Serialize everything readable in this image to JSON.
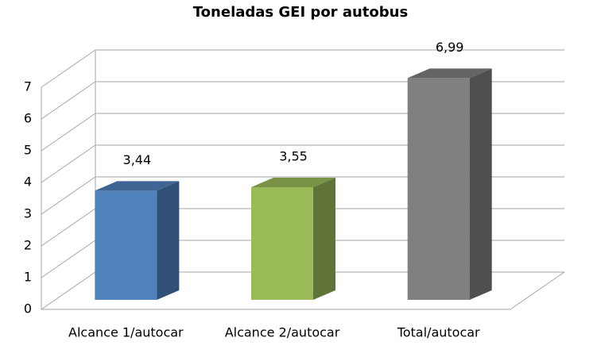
{
  "chart_data": {
    "type": "bar3d",
    "title": "Toneladas GEI por autobus",
    "categories": [
      "Alcance 1/autocar",
      "Alcance 2/autocar",
      "Total/autocar"
    ],
    "values": [
      3.44,
      3.55,
      6.99
    ],
    "value_labels": [
      "3,44",
      "3,55",
      "6,99"
    ],
    "colors": [
      "#4f81bd",
      "#9bbb59",
      "#808080"
    ],
    "ylim": [
      0,
      7
    ],
    "yticks": [
      0,
      1,
      2,
      3,
      4,
      5,
      6,
      7
    ],
    "grid": true
  }
}
